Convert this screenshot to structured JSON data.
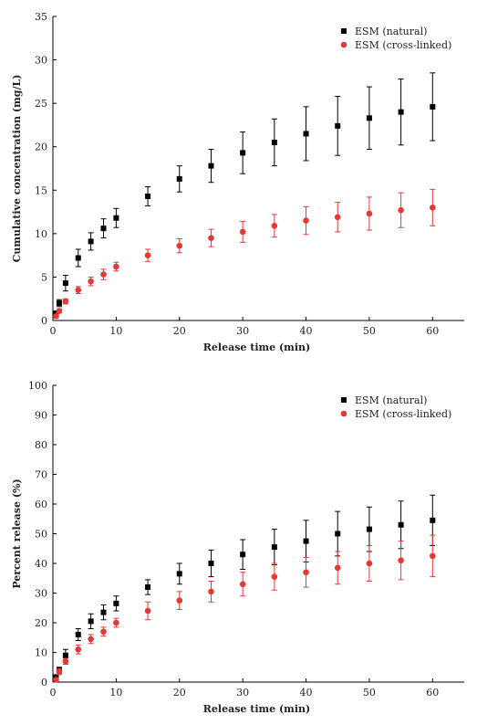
{
  "figure": {
    "background": "#ffffff"
  },
  "chart_data": [
    {
      "type": "scatter",
      "title": "",
      "xlabel": "Release time (min)",
      "ylabel": "Cumulative concentration (mg/L)",
      "xlim": [
        0,
        65
      ],
      "ylim": [
        0,
        35
      ],
      "xticks": [
        0,
        10,
        20,
        30,
        40,
        50,
        60
      ],
      "yticks": [
        0,
        5,
        10,
        15,
        20,
        25,
        30,
        35
      ],
      "grid": false,
      "legend_position": "top-right",
      "x": [
        0.5,
        1,
        2,
        4,
        6,
        8,
        10,
        15,
        20,
        25,
        30,
        35,
        40,
        45,
        50,
        55,
        60
      ],
      "series": [
        {
          "name": "ESM (natural)",
          "marker": "square",
          "color": "#000000",
          "values": [
            0.8,
            2.0,
            4.3,
            7.2,
            9.1,
            10.6,
            11.8,
            14.3,
            16.3,
            17.8,
            19.3,
            20.5,
            21.5,
            22.4,
            23.3,
            24.0,
            24.6
          ],
          "errors": [
            0.3,
            0.4,
            0.9,
            1.0,
            1.0,
            1.1,
            1.1,
            1.1,
            1.5,
            1.9,
            2.4,
            2.7,
            3.1,
            3.4,
            3.6,
            3.8,
            3.9
          ]
        },
        {
          "name": "ESM (cross-linked)",
          "marker": "circle",
          "color": "#e53935",
          "values": [
            0.5,
            1.1,
            2.2,
            3.5,
            4.5,
            5.3,
            6.2,
            7.5,
            8.6,
            9.5,
            10.2,
            10.9,
            11.5,
            11.9,
            12.3,
            12.7,
            13.0
          ],
          "errors": [
            0.2,
            0.2,
            0.3,
            0.4,
            0.5,
            0.6,
            0.5,
            0.7,
            0.8,
            1.0,
            1.2,
            1.3,
            1.6,
            1.7,
            1.9,
            2.0,
            2.1
          ]
        }
      ]
    },
    {
      "type": "scatter",
      "title": "",
      "xlabel": "Release time (min)",
      "ylabel": "Percent release (%)",
      "xlim": [
        0,
        65
      ],
      "ylim": [
        0,
        100
      ],
      "xticks": [
        0,
        10,
        20,
        30,
        40,
        50,
        60
      ],
      "yticks": [
        0,
        10,
        20,
        30,
        40,
        50,
        60,
        70,
        80,
        90,
        100
      ],
      "grid": false,
      "legend_position": "top-right",
      "x": [
        0.5,
        1,
        2,
        4,
        6,
        8,
        10,
        15,
        20,
        25,
        30,
        35,
        40,
        45,
        50,
        55,
        60
      ],
      "series": [
        {
          "name": "ESM (natural)",
          "marker": "square",
          "color": "#000000",
          "values": [
            1.5,
            4.0,
            9.0,
            16.0,
            20.5,
            23.5,
            26.5,
            32.0,
            36.5,
            40.0,
            43.0,
            45.5,
            47.5,
            50.0,
            51.5,
            53.0,
            54.5
          ],
          "errors": [
            1.0,
            1.0,
            2.0,
            2.0,
            2.5,
            2.5,
            2.5,
            2.5,
            3.5,
            4.5,
            5.0,
            6.0,
            7.0,
            7.5,
            7.5,
            8.0,
            8.5
          ]
        },
        {
          "name": "ESM (cross-linked)",
          "marker": "circle",
          "color": "#e53935",
          "values": [
            0.8,
            3.5,
            7.0,
            11.0,
            14.5,
            17.0,
            20.0,
            24.0,
            27.5,
            30.5,
            33.0,
            35.5,
            37.0,
            38.5,
            40.0,
            41.0,
            42.5
          ],
          "errors": [
            0.5,
            1.0,
            1.0,
            1.5,
            1.5,
            1.5,
            1.5,
            3.0,
            3.0,
            3.5,
            4.0,
            4.5,
            5.0,
            5.5,
            6.0,
            6.5,
            7.0
          ]
        }
      ]
    }
  ]
}
